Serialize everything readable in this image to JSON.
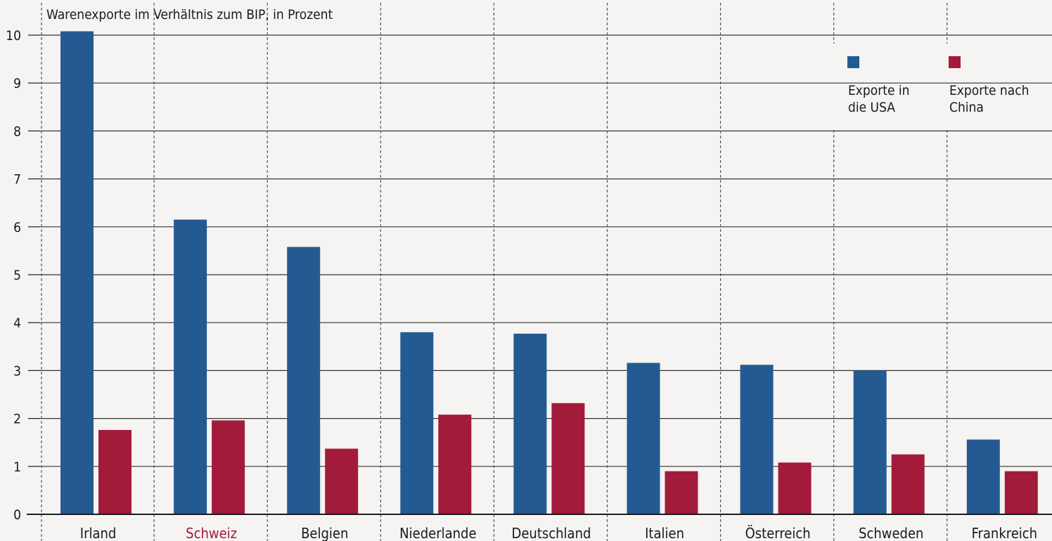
{
  "chart_data": {
    "type": "bar",
    "title": "Warenexporte im Verhältnis zum BIP, in Prozent",
    "xlabel": "",
    "ylabel": "",
    "ylim": [
      0,
      10
    ],
    "yticks": [
      "0",
      "1",
      "2",
      "3",
      "4",
      "5",
      "6",
      "7",
      "8",
      "9",
      "10"
    ],
    "categories": [
      "Irland",
      "Schweiz",
      "Belgien",
      "Niederlande",
      "Deutschland",
      "Italien",
      "Österreich",
      "Schweden",
      "Frankreich"
    ],
    "highlighted_category": "Schweiz",
    "series": [
      {
        "name": "Exporte in die USA",
        "legend_lines": [
          "Exporte in",
          "die USA"
        ],
        "color": "#245a92",
        "values": [
          10.08,
          6.15,
          5.58,
          3.8,
          3.77,
          3.16,
          3.12,
          3.0,
          1.56
        ]
      },
      {
        "name": "Exporte nach China",
        "legend_lines": [
          "Exporte nach",
          "China"
        ],
        "color": "#a21b3a",
        "values": [
          1.76,
          1.96,
          1.37,
          2.08,
          2.32,
          0.9,
          1.08,
          1.25,
          0.9
        ]
      }
    ],
    "grid": true,
    "legend_position": "top-right",
    "colors": {
      "background": "#f5f4f2",
      "text": "#1a1a1a",
      "highlight_label": "#a21b3a",
      "grid": "#333333"
    }
  }
}
